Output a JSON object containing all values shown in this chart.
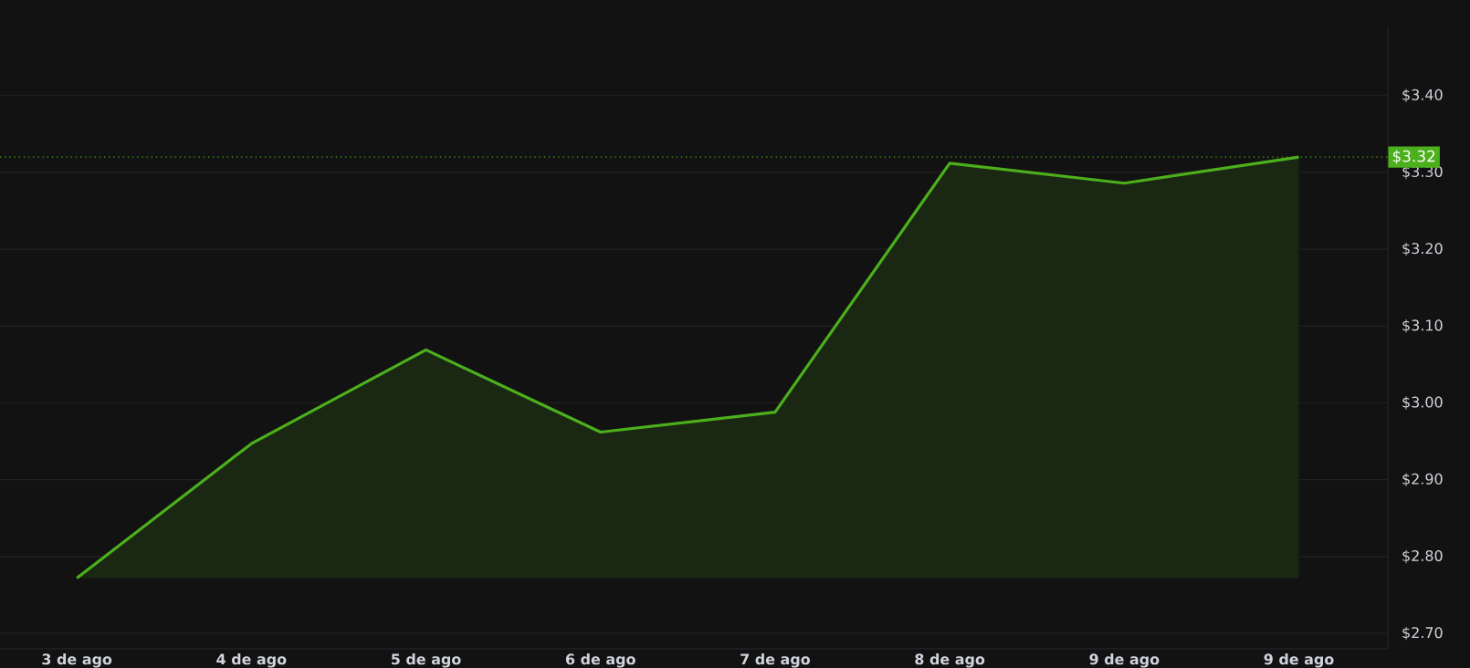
{
  "chart_data": {
    "type": "area",
    "categories": [
      "3 de ago",
      "4 de ago",
      "5 de ago",
      "6 de ago",
      "7 de ago",
      "8 de ago",
      "9 de ago",
      "9 de ago"
    ],
    "values": [
      2.772,
      2.947,
      3.069,
      2.962,
      2.988,
      3.312,
      3.286,
      3.32
    ],
    "color": "#4caf1c",
    "ylim": [
      2.68,
      3.49
    ],
    "yticks": [
      {
        "value": 2.7,
        "label": "$2.70"
      },
      {
        "value": 2.8,
        "label": "$2.80"
      },
      {
        "value": 2.9,
        "label": "$2.90"
      },
      {
        "value": 3.0,
        "label": "$3.00"
      },
      {
        "value": 3.1,
        "label": "$3.10"
      },
      {
        "value": 3.2,
        "label": "$3.20"
      },
      {
        "value": 3.3,
        "label": "$3.30"
      },
      {
        "value": 3.4,
        "label": "$3.40"
      }
    ],
    "grid": "y",
    "ref_lines": [
      {
        "axis": "y",
        "value": 3.32,
        "label": "$3.32",
        "color": "#4caf1c",
        "line_style": "dotted"
      }
    ]
  }
}
